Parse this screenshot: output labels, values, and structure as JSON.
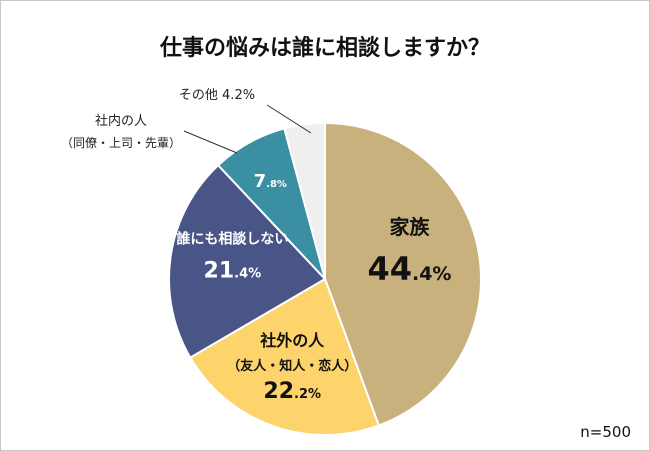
{
  "chart_data": {
    "type": "pie",
    "title": "仕事の悩みは誰に相談しますか？",
    "note": "n=500",
    "slices": [
      {
        "label": "家族",
        "sublabel": "",
        "value": 44.4,
        "int": "44",
        "dec": ".4%",
        "color": "#c8b17d"
      },
      {
        "label": "社外の人",
        "sublabel": "（友人・知人・恋人）",
        "value": 22.2,
        "int": "22",
        "dec": ".2%",
        "color": "#fdd36c"
      },
      {
        "label": "誰にも相談しない",
        "sublabel": "",
        "value": 21.4,
        "int": "21",
        "dec": ".4%",
        "color": "#4a5587"
      },
      {
        "label": "",
        "sublabel": "",
        "value": 7.8,
        "int": "7",
        "dec": ".8%",
        "color": "#3a8fa3"
      },
      {
        "label": "",
        "sublabel": "",
        "value": 4.2,
        "int": "",
        "dec": "",
        "color": "#efefef"
      }
    ],
    "callouts": {
      "inside_label": "社内の人",
      "inside_sublabel": "（同僚・上司・先輩）",
      "other_label": "その他 4.2%"
    }
  }
}
